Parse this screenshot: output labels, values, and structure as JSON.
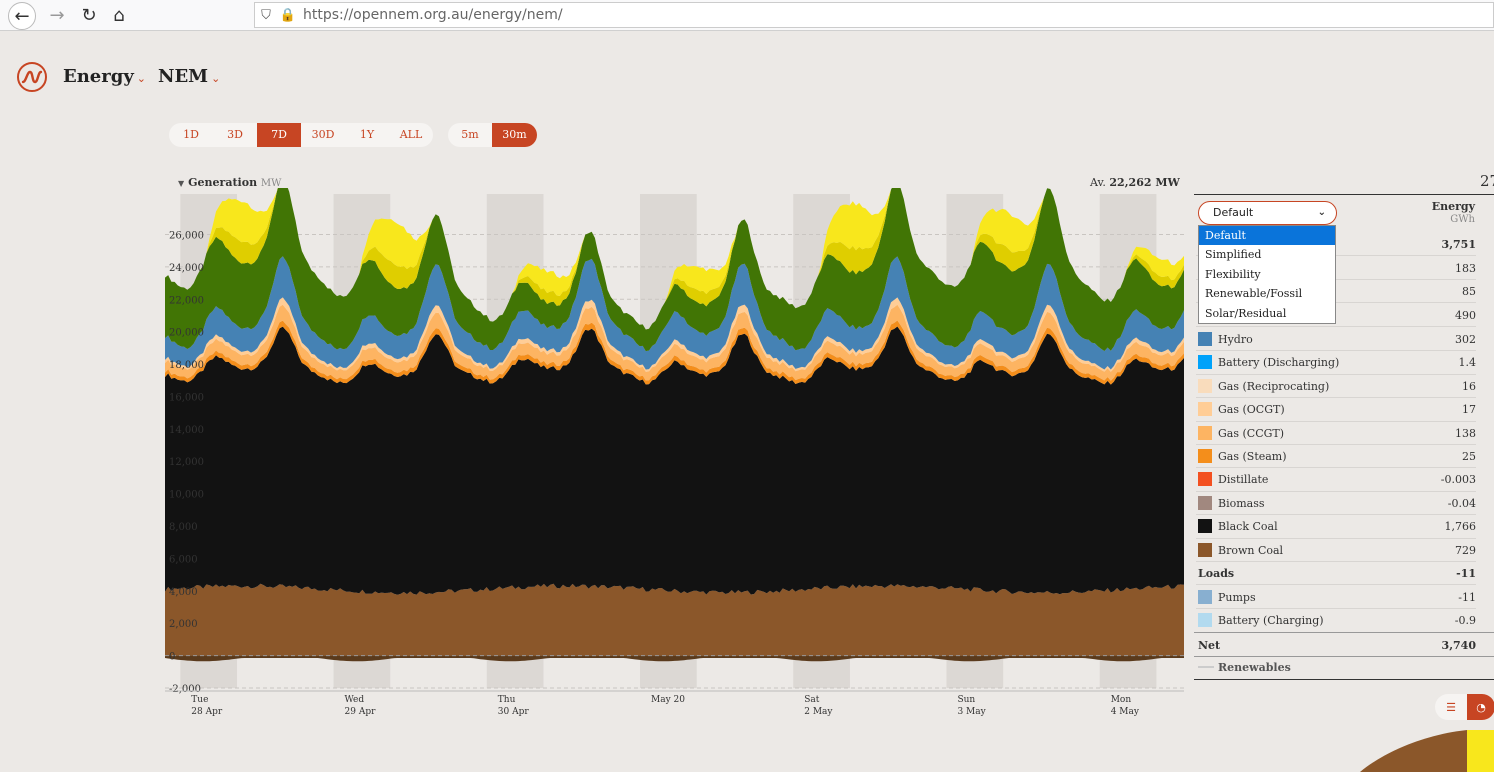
{
  "browser": {
    "url": "https://opennem.org.au/energy/nem/",
    "back_icon": "←",
    "forward_icon": "→",
    "reload_icon": "↻",
    "home_icon": "⌂",
    "shield_icon": "⛉",
    "lock_icon": "🔒"
  },
  "header": {
    "energy_menu": "Energy",
    "region_menu": "NEM",
    "chevron": "⌄"
  },
  "range_buttons": [
    "1D",
    "3D",
    "7D",
    "30D",
    "1Y",
    "ALL"
  ],
  "range_active": "7D",
  "interval_buttons": [
    "5m",
    "30m"
  ],
  "interval_active": "30m",
  "chart_header": {
    "title": "Generation",
    "unit": "MW",
    "avg_prefix": "Av.",
    "avg_value": "22,262 MW",
    "panel_truncated": "27"
  },
  "colors": {
    "brown_coal": "#8b572a",
    "black_coal": "#121212",
    "gas_steam": "#f48e1b",
    "gas_ccgt": "#fdb462",
    "gas_ocgt": "#ffcd96",
    "gas_recip": "#f9dcbc",
    "hydro": "#4582b4",
    "wind": "#417505",
    "solar_utility": "#dfce00",
    "solar_rooftop": "#f8e71c",
    "battery_discharging": "#00a2fa",
    "distillate": "#f35020",
    "biomass": "#a1887f",
    "pumps": "#88afd0",
    "battery_charging": "#b2daef",
    "accent": "#c74523"
  },
  "chart_data": {
    "type": "area",
    "stacked": true,
    "y_ticks": [
      "-2,000",
      "0",
      "2,000",
      "4,000",
      "6,000",
      "8,000",
      "10,000",
      "12,000",
      "14,000",
      "16,000",
      "18,000",
      "20,000",
      "22,000",
      "24,000",
      "26,000"
    ],
    "ylim": [
      -2000,
      28500
    ],
    "x_labels": [
      {
        "line1": "Tue",
        "line2": "28 Apr"
      },
      {
        "line1": "Wed",
        "line2": "29 Apr"
      },
      {
        "line1": "Thu",
        "line2": "30 Apr"
      },
      {
        "line1": "May 20",
        "line2": ""
      },
      {
        "line1": "Sat",
        "line2": "2 May"
      },
      {
        "line1": "Sun",
        "line2": "3 May"
      },
      {
        "line1": "Mon",
        "line2": "4 May"
      }
    ],
    "x_label_day": [
      0.25,
      1.25,
      2.25,
      3.25,
      4.25,
      5.25,
      6.25
    ],
    "days_shown": 6.65,
    "series": [
      {
        "key": "brown_coal",
        "base": 4100,
        "amp": 500,
        "peak": 0
      },
      {
        "key": "black_coal",
        "base": 11800,
        "amp": 3600,
        "peak": 0
      },
      {
        "key": "gas_steam",
        "base": 200,
        "amp": 150,
        "peak": 0
      },
      {
        "key": "gas_ccgt",
        "base": 400,
        "amp": 500,
        "peak": 0
      },
      {
        "key": "gas_ocgt",
        "base": 50,
        "amp": 350,
        "peak": 0
      },
      {
        "key": "hydro",
        "base": 700,
        "amp": 1600,
        "peak": 0
      },
      {
        "key": "wind",
        "base": 2800,
        "amp": 1200,
        "peak": 0
      },
      {
        "key": "solar_utility",
        "base": 0,
        "amp": 0,
        "peak": 1400
      },
      {
        "key": "solar_rooftop",
        "base": 0,
        "amp": 0,
        "peak": 2600
      }
    ]
  },
  "panel": {
    "select_value": "Default",
    "select_arrow": "⌄",
    "dropdown_options": [
      "Default",
      "Simplified",
      "Flexibility",
      "Renewable/Fossil",
      "Solar/Residual"
    ],
    "energy_header": "Energy",
    "energy_unit": "GWh",
    "sources_total": "3,751",
    "hidden_values": [
      "183",
      "85",
      "490"
    ],
    "rows": [
      {
        "label": "Hydro",
        "value": "302",
        "color": "#4582b4"
      },
      {
        "label": "Battery (Discharging)",
        "value": "1.4",
        "color": "#00a2fa"
      },
      {
        "label": "Gas (Reciprocating)",
        "value": "16",
        "color": "#f9dcbc"
      },
      {
        "label": "Gas (OCGT)",
        "value": "17",
        "color": "#ffcd96"
      },
      {
        "label": "Gas (CCGT)",
        "value": "138",
        "color": "#fdb462"
      },
      {
        "label": "Gas (Steam)",
        "value": "25",
        "color": "#f48e1b"
      },
      {
        "label": "Distillate",
        "value": "-0.003",
        "color": "#f35020"
      },
      {
        "label": "Biomass",
        "value": "-0.04",
        "color": "#a1887f"
      },
      {
        "label": "Black Coal",
        "value": "1,766",
        "color": "#121212"
      },
      {
        "label": "Brown Coal",
        "value": "729",
        "color": "#8b572a"
      }
    ],
    "loads_label": "Loads",
    "loads_value": "-11",
    "load_rows": [
      {
        "label": "Pumps",
        "value": "-11",
        "color": "#88afd0"
      },
      {
        "label": "Battery (Charging)",
        "value": "-0.9",
        "color": "#b2daef"
      }
    ],
    "net_label": "Net",
    "net_value": "3,740",
    "renewables_label": "Renewables",
    "toggle_bar_icon": "☰",
    "toggle_pie_icon": "◔"
  }
}
